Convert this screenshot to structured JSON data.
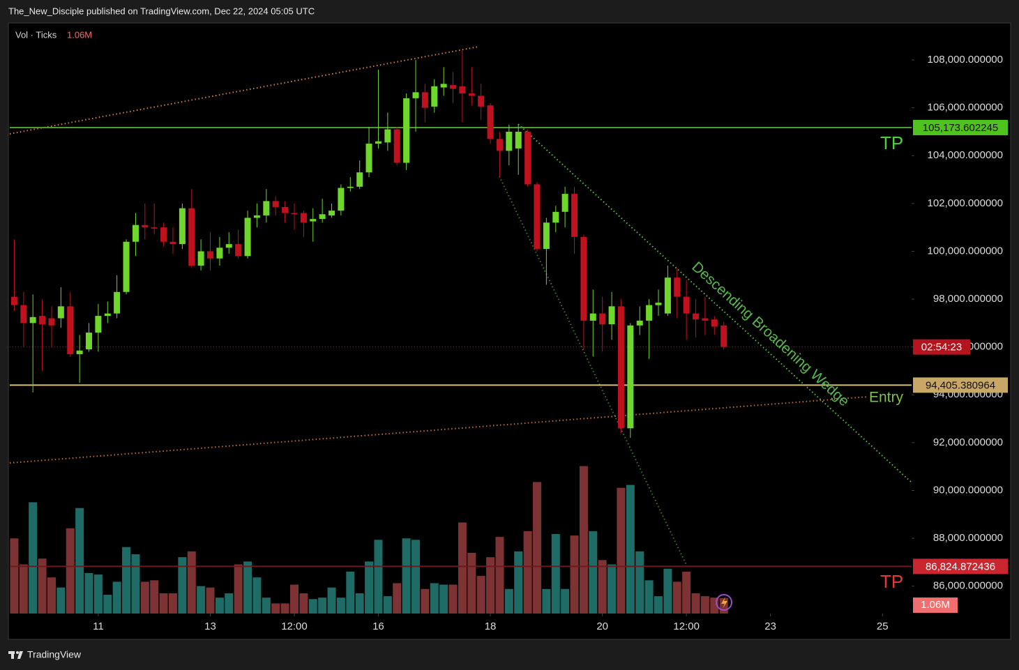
{
  "chart_data": {
    "type": "candlestick",
    "attribution": "The_New_Disciple published on TradingView.com, Dec 22, 2024 05:05 UTC",
    "brand": "TradingView",
    "volume_name": "Vol · Ticks",
    "volume_last_label": "1.06M",
    "countdown": "02:54:23",
    "up_color": "#6fd62b",
    "down_color": "#c0111f",
    "volume_up_color": "#1f6b66",
    "volume_down_color": "#7d3333",
    "x": [
      9.5,
      9.667,
      9.833,
      10,
      10.167,
      10.333,
      10.5,
      10.667,
      10.833,
      11,
      11.167,
      11.333,
      11.5,
      11.667,
      11.833,
      12,
      12.167,
      12.333,
      12.5,
      12.667,
      12.833,
      13,
      13.167,
      13.333,
      13.5,
      13.667,
      13.833,
      14,
      14.167,
      14.333,
      14.5,
      14.667,
      14.833,
      15,
      15.167,
      15.333,
      15.5,
      15.667,
      15.833,
      16,
      16.167,
      16.333,
      16.5,
      16.667,
      16.833,
      17,
      17.167,
      17.333,
      17.5,
      17.667,
      17.833,
      18,
      18.167,
      18.333,
      18.5,
      18.667,
      18.833,
      19,
      19.167,
      19.333,
      19.5,
      19.667,
      19.833,
      20,
      20.167,
      20.333,
      20.5,
      20.667,
      20.833,
      21,
      21.167,
      21.333,
      21.5,
      21.667,
      21.833,
      22,
      22.167
    ],
    "open": [
      98100,
      97750,
      97000,
      97300,
      97200,
      97200,
      97700,
      95700,
      95900,
      96600,
      97300,
      97400,
      98300,
      100400,
      101100,
      101000,
      101000,
      100400,
      100300,
      101800,
      99400,
      100000,
      99700,
      100150,
      100300,
      99800,
      101400,
      101500,
      102100,
      101850,
      101600,
      101600,
      101250,
      101350,
      101500,
      101700,
      102650,
      102700,
      103300,
      104500,
      104550,
      105100,
      103700,
      106400,
      106650,
      106050,
      106850,
      106950,
      106900,
      106600,
      106500,
      106100,
      104700,
      104200,
      104300,
      105000,
      102800,
      100100,
      101200,
      101650,
      102400,
      100600,
      97100,
      97400,
      96950,
      97700,
      92600,
      96900,
      97100,
      97750,
      97400,
      98900,
      98100,
      97400,
      97200,
      97150,
      96900
    ],
    "high": [
      100500,
      98300,
      98200,
      98000,
      97700,
      98500,
      98300,
      96500,
      97000,
      97800,
      97900,
      99000,
      100500,
      101600,
      102000,
      102000,
      101200,
      101000,
      102000,
      102600,
      100500,
      100800,
      100600,
      100800,
      100900,
      101700,
      102000,
      102600,
      102300,
      102100,
      102000,
      101700,
      101800,
      102200,
      102000,
      102800,
      103100,
      103800,
      105200,
      107600,
      105800,
      105200,
      106600,
      108000,
      107000,
      107200,
      107700,
      107500,
      108400,
      107700,
      107000,
      106200,
      105000,
      105300,
      105300,
      105100,
      102900,
      101400,
      101900,
      102700,
      102700,
      100700,
      98400,
      98100,
      98300,
      98000,
      97000,
      97700,
      98000,
      98400,
      99400,
      99300,
      98800,
      98000,
      98100,
      97300,
      97050
    ],
    "low": [
      97500,
      96000,
      94100,
      95000,
      96000,
      96800,
      95600,
      94500,
      95800,
      95800,
      97000,
      97200,
      98200,
      99800,
      100500,
      100700,
      100200,
      99900,
      100100,
      99300,
      99200,
      99200,
      99400,
      99900,
      99700,
      99700,
      101000,
      101200,
      101500,
      101200,
      100900,
      100600,
      100400,
      101200,
      101400,
      101500,
      102500,
      102600,
      103100,
      104300,
      104200,
      103600,
      103400,
      105000,
      105400,
      105800,
      106500,
      106200,
      105400,
      106100,
      105500,
      104500,
      103100,
      103600,
      103200,
      102700,
      100000,
      98600,
      100800,
      101000,
      99900,
      95900,
      95600,
      95800,
      96300,
      92400,
      92200,
      96500,
      95500,
      97300,
      97300,
      97200,
      96300,
      96400,
      96500,
      96500,
      95900
    ],
    "close": [
      97750,
      97000,
      97250,
      96950,
      96900,
      97700,
      95700,
      95850,
      96600,
      97300,
      97400,
      98300,
      100400,
      101100,
      101000,
      100950,
      100400,
      100300,
      101800,
      99400,
      100000,
      99700,
      100150,
      100300,
      99800,
      101400,
      101500,
      102100,
      101850,
      101600,
      101550,
      101200,
      101350,
      101550,
      101700,
      102650,
      102700,
      103300,
      104500,
      104600,
      105100,
      103700,
      106400,
      106650,
      106000,
      106900,
      107000,
      106800,
      106600,
      106500,
      106050,
      104700,
      104200,
      105000,
      105000,
      102800,
      100100,
      101200,
      101650,
      102400,
      100600,
      97100,
      97400,
      96950,
      97700,
      92600,
      96900,
      97100,
      97750,
      97850,
      98900,
      98100,
      97400,
      97150,
      97100,
      96850,
      96000
    ],
    "volume": [
      5.2,
      3.4,
      7.7,
      3.8,
      2.5,
      1.8,
      5.9,
      7.3,
      2.8,
      2.7,
      1.3,
      2.2,
      4.6,
      4.1,
      2.2,
      2.3,
      1.4,
      1.4,
      3.9,
      4.3,
      1.9,
      1.8,
      1.1,
      1.4,
      3.4,
      3.6,
      2.5,
      1.1,
      0.7,
      0.7,
      2.0,
      1.4,
      1.0,
      1.1,
      1.8,
      1.1,
      2.9,
      1.4,
      3.6,
      5.1,
      1.2,
      2.1,
      5.2,
      5.1,
      1.7,
      2.1,
      2.0,
      2.0,
      6.3,
      4.2,
      2.6,
      3.9,
      5.3,
      1.7,
      4.3,
      5.7,
      9.1,
      1.7,
      5.5,
      1.7,
      5.4,
      10.2,
      5.7,
      3.7,
      3.4,
      8.7,
      8.9,
      4.3,
      2.3,
      1.2,
      3.1,
      2.2,
      2.9,
      1.4,
      1.2,
      1.1,
      1.06
    ],
    "volume_ylim": [
      0,
      11
    ],
    "xlim": [
      9.42,
      25.52
    ],
    "xticks": [
      11,
      13,
      {
        "value": 14.5,
        "label": "12:00"
      },
      16,
      18,
      20,
      {
        "value": 21.5,
        "label": "12:00"
      },
      23,
      25
    ],
    "ylim": [
      84855,
      109516
    ],
    "yticks": [
      {
        "value": 86000,
        "label": "86,000.000000"
      },
      {
        "value": 88000,
        "label": "88,000.000000"
      },
      {
        "value": 90000,
        "label": "90,000.000000"
      },
      {
        "value": 92000,
        "label": "92,000.000000"
      },
      {
        "value": 94000,
        "label": "94,000.000000"
      },
      {
        "value": 96000,
        "label": "96,000.000000"
      },
      {
        "value": 98000,
        "label": "98,000.000000"
      },
      {
        "value": 100000,
        "label": "100,000.000000"
      },
      {
        "value": 102000,
        "label": "102,000.000000"
      },
      {
        "value": 104000,
        "label": "104,000.000000"
      },
      {
        "value": 106000,
        "label": "106,000.000000"
      },
      {
        "value": 108000,
        "label": "108,000.000000"
      }
    ],
    "price_lines": [
      {
        "value": 105173.602245,
        "label": "105,173.602245",
        "color": "#4a9e2a",
        "badge_color": "#4fc21e"
      },
      {
        "value": 94405.380964,
        "label": "94,405.380964",
        "color": "#d8c07a",
        "badge_color": "#c9a766"
      },
      {
        "value": 86824.872436,
        "label": "86,824.872436",
        "color": "#6e1a1a",
        "badge_color": "#c9262f"
      }
    ],
    "annotations": {
      "tp_top": "TP",
      "tp_bottom": "TP",
      "entry": "Entry",
      "pattern": "Descending Broadening Wedge"
    }
  }
}
